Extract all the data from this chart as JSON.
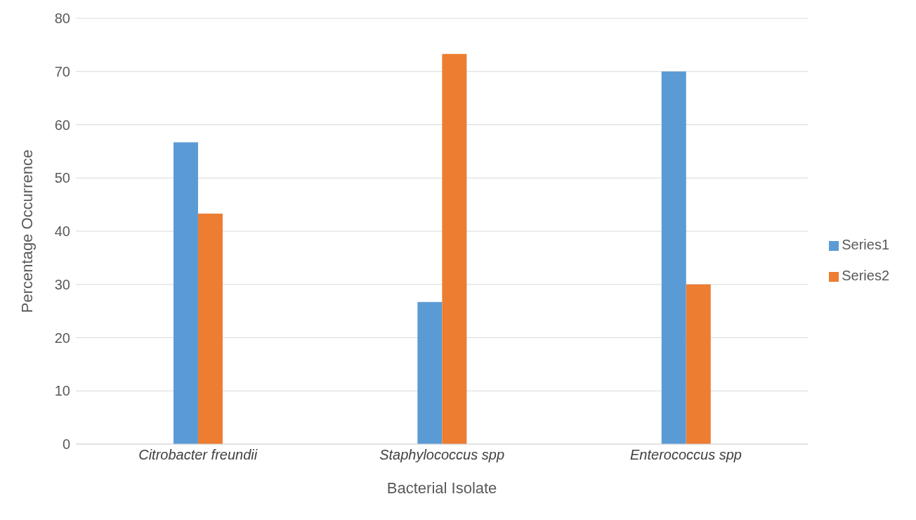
{
  "chart_data": {
    "type": "bar",
    "xlabel": "Bacterial Isolate",
    "ylabel": "Percentage Occurrence",
    "categories": [
      "Citrobacter freundii",
      "Staphylococcus spp",
      "Enterococcus spp"
    ],
    "series": [
      {
        "name": "Series1",
        "color": "#5b9bd5",
        "values": [
          56.7,
          26.7,
          70
        ]
      },
      {
        "name": "Series2",
        "color": "#ed7d31",
        "values": [
          43.3,
          73.3,
          30
        ]
      }
    ],
    "ylim": [
      0,
      80
    ],
    "yticks": [
      0,
      10,
      20,
      30,
      40,
      50,
      60,
      70,
      80
    ],
    "grid": "y",
    "legend": "right"
  }
}
